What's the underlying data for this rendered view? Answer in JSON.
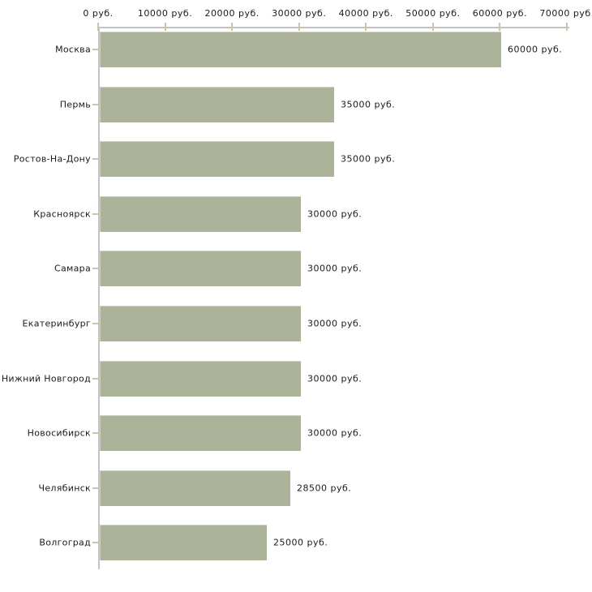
{
  "chart_data": {
    "type": "bar",
    "orientation": "horizontal",
    "title": "",
    "xlabel": "",
    "ylabel": "",
    "unit": "руб.",
    "categories": [
      "Москва",
      "Пермь",
      "Ростов-На-Дону",
      "Красноярск",
      "Самара",
      "Екатеринбург",
      "Нижний Новгород",
      "Новосибирск",
      "Челябинск",
      "Волгоград"
    ],
    "values": [
      60000,
      35000,
      35000,
      30000,
      30000,
      30000,
      30000,
      30000,
      28500,
      25000
    ],
    "value_labels": [
      "60000 руб.",
      "35000 руб.",
      "35000 руб.",
      "30000 руб.",
      "30000 руб.",
      "30000 руб.",
      "30000 руб.",
      "30000 руб.",
      "28500 руб.",
      "25000 руб."
    ],
    "x_tick_values": [
      0,
      10000,
      20000,
      30000,
      40000,
      50000,
      60000,
      70000
    ],
    "x_tick_labels": [
      "0 руб.",
      "10000 руб.",
      "20000 руб.",
      "30000 руб.",
      "40000 руб.",
      "50000 руб.",
      "60000 руб.",
      "70000 руб."
    ],
    "xlim": [
      0,
      70000
    ],
    "grid": false,
    "legend": false,
    "colors": {
      "bar_fill": "#abb399",
      "axis_line": "#c3c3c3",
      "tick_mark": "#c9c9a1",
      "text": "#1a1a1a",
      "background": "#ffffff"
    }
  }
}
